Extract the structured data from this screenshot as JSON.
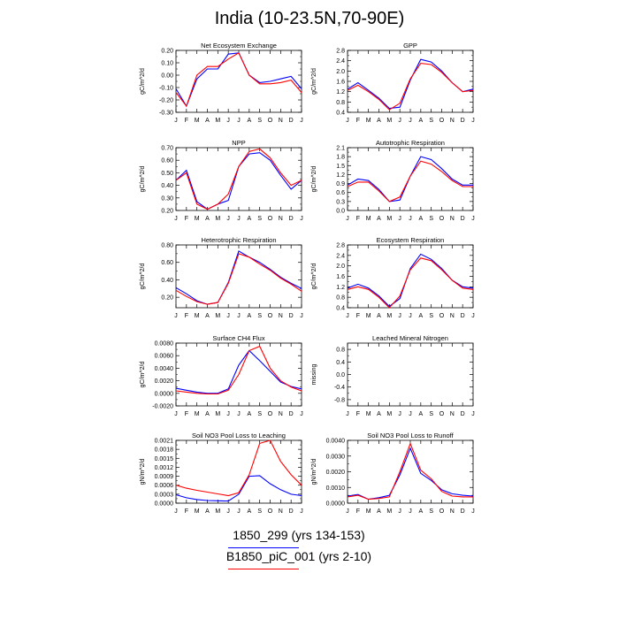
{
  "title": "India (10-23.5N,70-90E)",
  "months": [
    "J",
    "F",
    "M",
    "A",
    "M",
    "J",
    "J",
    "A",
    "S",
    "O",
    "N",
    "D",
    "J"
  ],
  "legend": [
    {
      "label": "1850_299 (yrs 134-153)",
      "color": "#0000ff"
    },
    {
      "label": "B1850_piC_001 (yrs 2-10)",
      "color": "#ff0000"
    }
  ],
  "chart_data": [
    {
      "type": "line",
      "title": "Net Ecosystem Exchange",
      "ylabel": "gC/m^2/d",
      "ylim": [
        -0.3,
        0.2
      ],
      "yticks": [
        "-0.30",
        "-0.20",
        "-0.10",
        "0.00",
        "0.10",
        "0.20"
      ],
      "ytick_values": [
        -0.3,
        -0.2,
        -0.1,
        0.0,
        0.1,
        0.2
      ],
      "series": [
        {
          "color": "#0000ff",
          "values": [
            -0.11,
            -0.25,
            -0.03,
            0.05,
            0.05,
            0.17,
            0.18,
            0.0,
            -0.06,
            -0.05,
            -0.03,
            -0.01,
            -0.11
          ]
        },
        {
          "color": "#ff0000",
          "values": [
            -0.14,
            -0.25,
            0.0,
            0.07,
            0.07,
            0.13,
            0.18,
            0.0,
            -0.07,
            -0.07,
            -0.06,
            -0.04,
            -0.14
          ]
        }
      ]
    },
    {
      "type": "line",
      "title": "GPP",
      "ylabel": "gC/m^2/d",
      "ylim": [
        0.4,
        2.8
      ],
      "yticks": [
        "0.4",
        "0.8",
        "1.2",
        "1.6",
        "2.0",
        "2.4",
        "2.8"
      ],
      "ytick_values": [
        0.4,
        0.8,
        1.2,
        1.6,
        2.0,
        2.4,
        2.8
      ],
      "series": [
        {
          "color": "#0000ff",
          "values": [
            1.3,
            1.55,
            1.25,
            0.95,
            0.55,
            0.6,
            1.65,
            2.45,
            2.35,
            2.0,
            1.55,
            1.2,
            1.3
          ]
        },
        {
          "color": "#ff0000",
          "values": [
            1.25,
            1.45,
            1.2,
            0.9,
            0.5,
            0.75,
            1.7,
            2.3,
            2.25,
            1.95,
            1.55,
            1.2,
            1.25
          ]
        }
      ]
    },
    {
      "type": "line",
      "title": "NPP",
      "ylabel": "gC/m^2/d",
      "ylim": [
        0.2,
        0.7
      ],
      "yticks": [
        "0.20",
        "0.30",
        "0.40",
        "0.50",
        "0.60",
        "0.70"
      ],
      "ytick_values": [
        0.2,
        0.3,
        0.4,
        0.5,
        0.6,
        0.7
      ],
      "series": [
        {
          "color": "#0000ff",
          "values": [
            0.44,
            0.52,
            0.27,
            0.21,
            0.25,
            0.28,
            0.55,
            0.65,
            0.66,
            0.6,
            0.48,
            0.37,
            0.44
          ]
        },
        {
          "color": "#ff0000",
          "values": [
            0.44,
            0.5,
            0.25,
            0.21,
            0.25,
            0.33,
            0.55,
            0.67,
            0.69,
            0.62,
            0.5,
            0.4,
            0.44
          ]
        }
      ]
    },
    {
      "type": "line",
      "title": "Autotrophic Respiration",
      "ylabel": "gC/m^2/d",
      "ylim": [
        0.0,
        2.1
      ],
      "yticks": [
        "0.0",
        "0.3",
        "0.6",
        "0.9",
        "1.2",
        "1.5",
        "1.8",
        "2.1"
      ],
      "ytick_values": [
        0.0,
        0.3,
        0.6,
        0.9,
        1.2,
        1.5,
        1.8,
        2.1
      ],
      "series": [
        {
          "color": "#0000ff",
          "values": [
            0.85,
            1.05,
            1.0,
            0.7,
            0.3,
            0.35,
            1.15,
            1.8,
            1.7,
            1.4,
            1.05,
            0.85,
            0.85
          ]
        },
        {
          "color": "#ff0000",
          "values": [
            0.8,
            0.95,
            0.95,
            0.65,
            0.3,
            0.45,
            1.15,
            1.65,
            1.55,
            1.3,
            1.0,
            0.8,
            0.8
          ]
        }
      ]
    },
    {
      "type": "line",
      "title": "Heterotrophic Respiration",
      "ylabel": "gC/m^2/d",
      "ylim": [
        0.08,
        0.8
      ],
      "yticks": [
        "0.20",
        "0.40",
        "0.60",
        "0.80"
      ],
      "ytick_values": [
        0.2,
        0.4,
        0.6,
        0.8
      ],
      "series": [
        {
          "color": "#0000ff",
          "values": [
            0.31,
            0.24,
            0.16,
            0.12,
            0.14,
            0.37,
            0.73,
            0.66,
            0.6,
            0.52,
            0.43,
            0.36,
            0.3
          ]
        },
        {
          "color": "#ff0000",
          "values": [
            0.28,
            0.21,
            0.15,
            0.12,
            0.14,
            0.36,
            0.7,
            0.66,
            0.58,
            0.51,
            0.42,
            0.35,
            0.27
          ]
        }
      ]
    },
    {
      "type": "line",
      "title": "Ecosystem Respiration",
      "ylabel": "gC/m^2/d",
      "ylim": [
        0.4,
        2.8
      ],
      "yticks": [
        "0.4",
        "0.8",
        "1.2",
        "1.6",
        "2.0",
        "2.4",
        "2.8"
      ],
      "ytick_values": [
        0.4,
        0.8,
        1.2,
        1.6,
        2.0,
        2.4,
        2.8
      ],
      "series": [
        {
          "color": "#0000ff",
          "values": [
            1.15,
            1.3,
            1.15,
            0.85,
            0.45,
            0.75,
            1.9,
            2.45,
            2.25,
            1.9,
            1.45,
            1.2,
            1.15
          ]
        },
        {
          "color": "#ff0000",
          "values": [
            1.1,
            1.2,
            1.1,
            0.8,
            0.4,
            0.85,
            1.85,
            2.3,
            2.2,
            1.85,
            1.45,
            1.15,
            1.1
          ]
        }
      ]
    },
    {
      "type": "line",
      "title": "Surface CH4 Flux",
      "ylabel": "gC/m^2/d",
      "ylim": [
        -0.002,
        0.008
      ],
      "yticks": [
        "-0.0020",
        "0.0000",
        "0.0020",
        "0.0040",
        "0.0060",
        "0.0080"
      ],
      "ytick_values": [
        -0.002,
        0.0,
        0.002,
        0.004,
        0.006,
        0.008
      ],
      "series": [
        {
          "color": "#0000ff",
          "values": [
            0.0008,
            0.0005,
            0.0002,
            0.0,
            0.0,
            0.0007,
            0.0045,
            0.0068,
            0.0052,
            0.0035,
            0.0018,
            0.0011,
            0.0007
          ]
        },
        {
          "color": "#ff0000",
          "values": [
            0.0004,
            0.0002,
            0.0,
            -0.0001,
            -0.0001,
            0.0005,
            0.003,
            0.0068,
            0.0075,
            0.004,
            0.002,
            0.001,
            0.0004
          ]
        }
      ]
    },
    {
      "type": "line",
      "title": "Leached Mineral Nitrogen",
      "ylabel": "missing",
      "ylim": [
        -1.0,
        1.0
      ],
      "yticks": [
        "-0.8",
        "-0.4",
        "0.0",
        "0.4",
        "0.8"
      ],
      "ytick_values": [
        -0.8,
        -0.4,
        0.0,
        0.4,
        0.8
      ],
      "series": []
    },
    {
      "type": "line",
      "title": "Soil NO3 Pool Loss to Leaching",
      "ylabel": "gN/m^2/d",
      "ylim": [
        0.0,
        0.0021
      ],
      "yticks": [
        "0.0000",
        "0.0003",
        "0.0006",
        "0.0009",
        "0.0012",
        "0.0015",
        "0.0018",
        "0.0021"
      ],
      "ytick_values": [
        0.0,
        0.0003,
        0.0006,
        0.0009,
        0.0012,
        0.0015,
        0.0018,
        0.0021
      ],
      "series": [
        {
          "color": "#0000ff",
          "values": [
            0.00028,
            0.00018,
            0.00012,
            9e-05,
            8e-05,
            7e-05,
            0.0003,
            0.0009,
            0.00092,
            0.00065,
            0.00045,
            0.0003,
            0.00025
          ]
        },
        {
          "color": "#ff0000",
          "values": [
            0.0006,
            0.0005,
            0.00043,
            0.00037,
            0.00031,
            0.00025,
            0.00035,
            0.00095,
            0.002,
            0.0021,
            0.0014,
            0.00095,
            0.0006
          ]
        }
      ]
    },
    {
      "type": "line",
      "title": "Soil NO3 Pool Loss to Runoff",
      "ylabel": "gN/m^2/d",
      "ylim": [
        0.0,
        0.004
      ],
      "yticks": [
        "0.0000",
        "0.0010",
        "0.0020",
        "0.0030",
        "0.0040"
      ],
      "ytick_values": [
        0.0,
        0.001,
        0.002,
        0.003,
        0.004
      ],
      "series": [
        {
          "color": "#0000ff",
          "values": [
            0.00045,
            0.00055,
            0.00025,
            0.00035,
            0.0005,
            0.0018,
            0.0035,
            0.0019,
            0.00145,
            0.00085,
            0.0006,
            0.0005,
            0.00045
          ]
        },
        {
          "color": "#ff0000",
          "values": [
            0.0004,
            0.0005,
            0.00025,
            0.0003,
            0.0004,
            0.002,
            0.0038,
            0.0021,
            0.00155,
            0.00075,
            0.00045,
            0.0004,
            0.0004
          ]
        }
      ]
    }
  ]
}
